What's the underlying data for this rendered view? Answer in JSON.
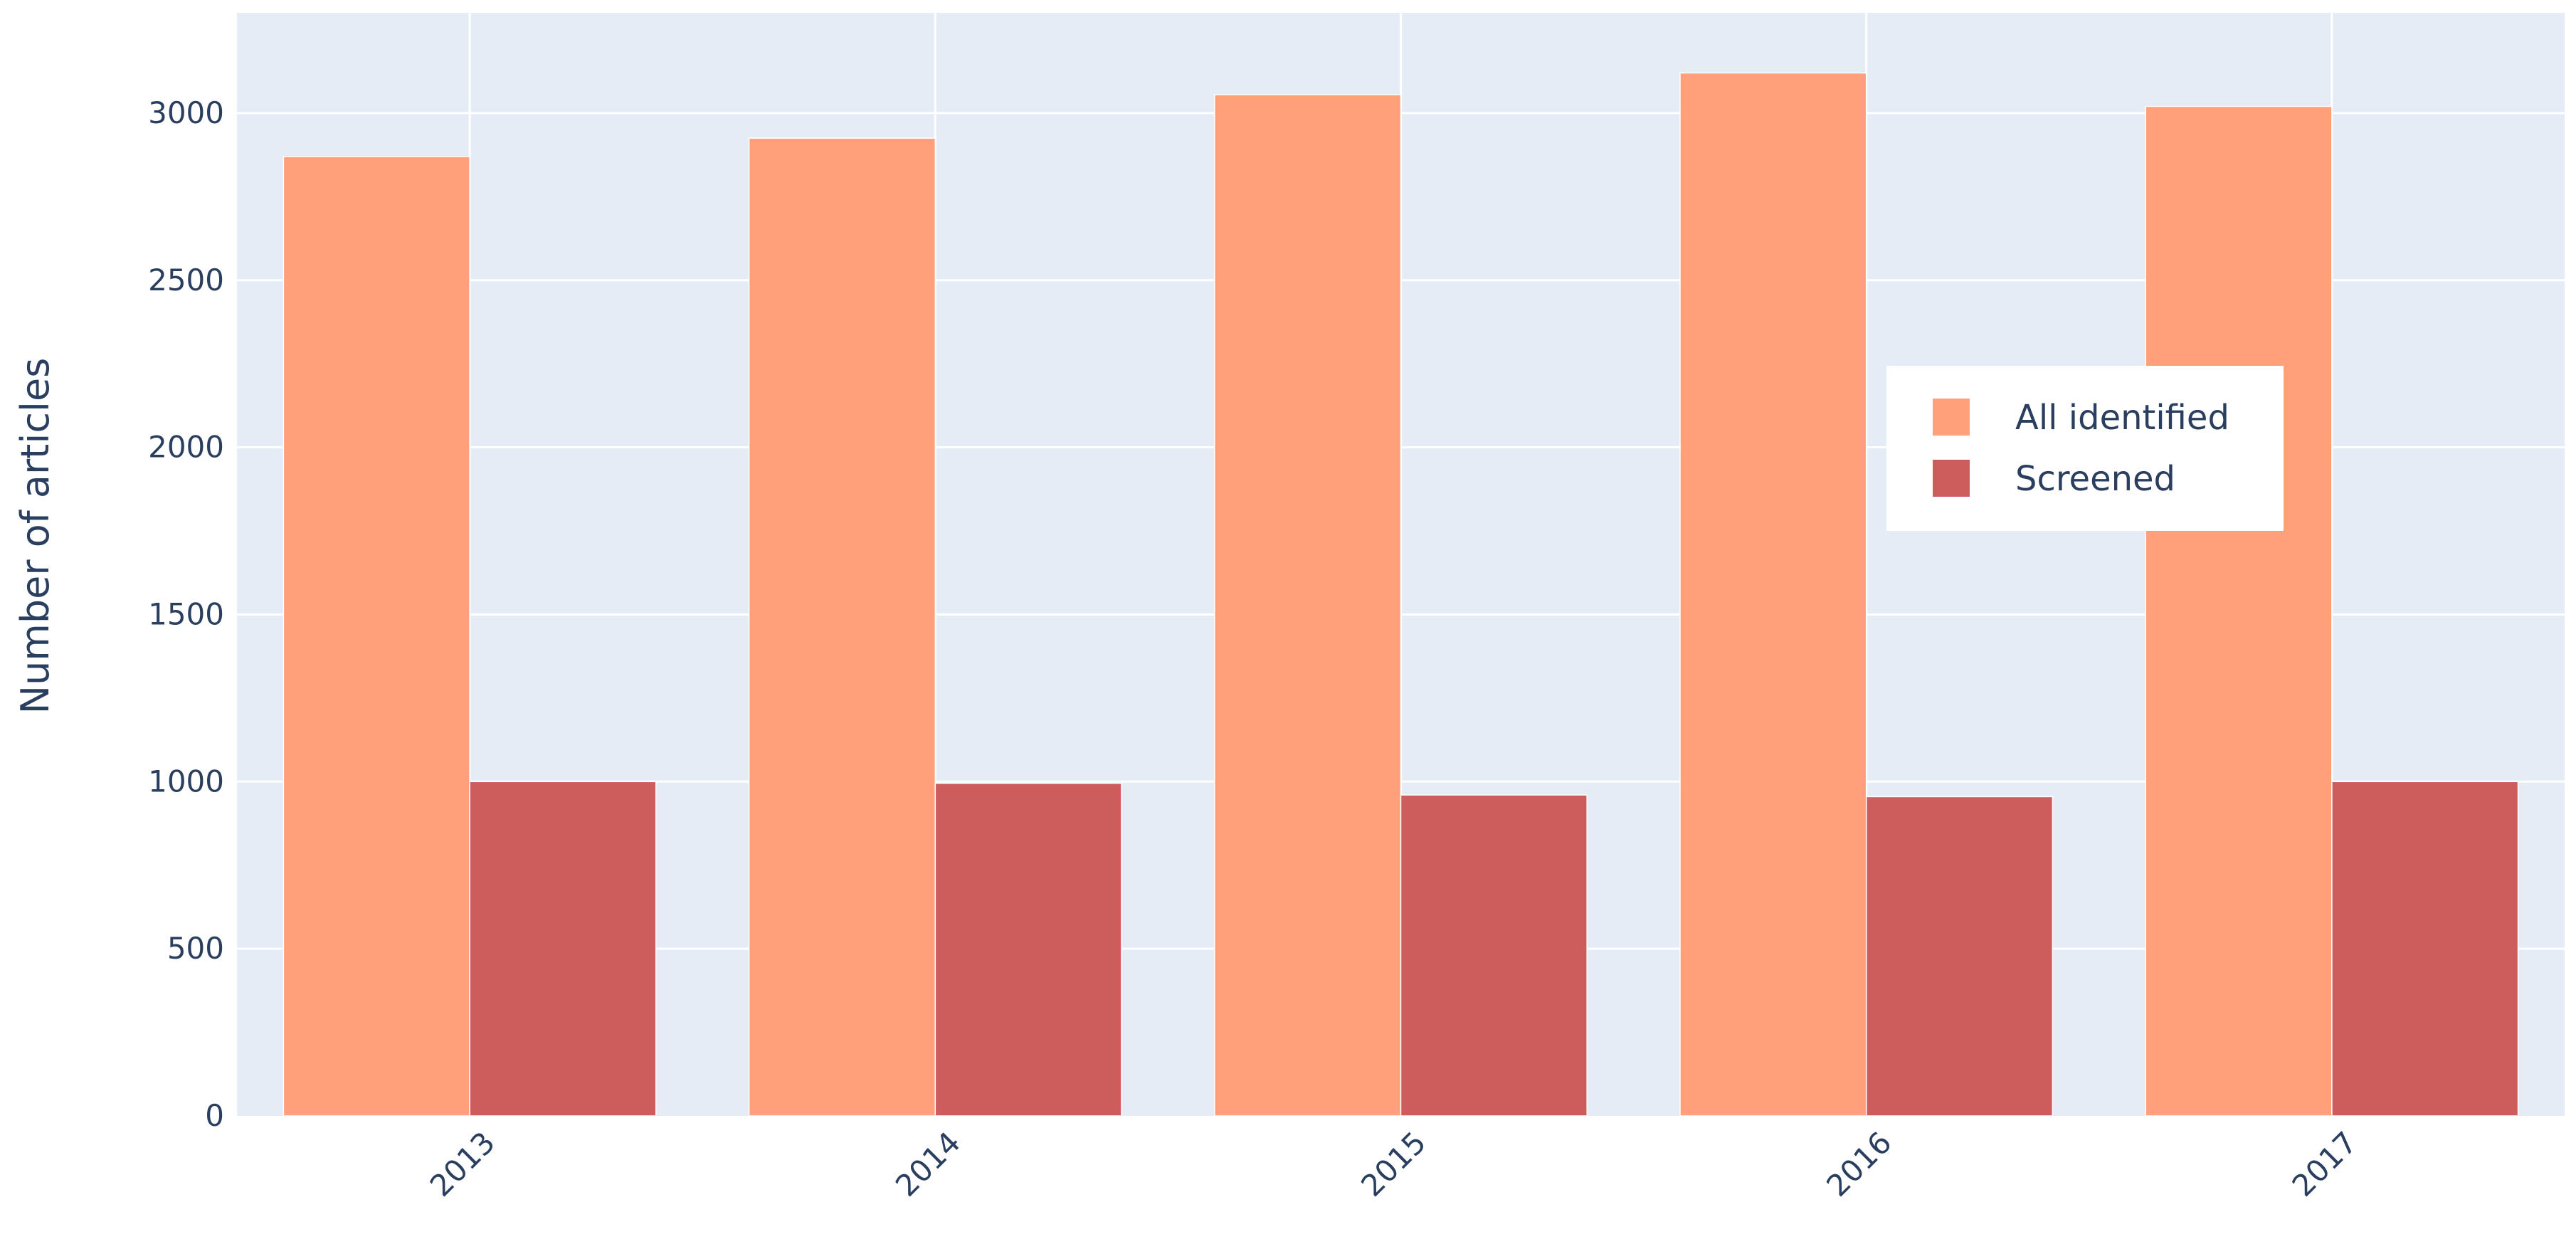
{
  "chart_data": {
    "type": "bar",
    "title": "",
    "xlabel": "",
    "ylabel": "Number of articles",
    "categories": [
      "2013",
      "2014",
      "2015",
      "2016",
      "2017"
    ],
    "series": [
      {
        "name": "All identified",
        "color": "#FFA07A",
        "values": [
          2870,
          2925,
          3055,
          3120,
          3020
        ]
      },
      {
        "name": "Screened",
        "color": "#CD5C5C",
        "values": [
          1000,
          995,
          960,
          955,
          1000
        ]
      }
    ],
    "ylim": [
      0,
      3300
    ],
    "yticks": [
      0,
      500,
      1000,
      1500,
      2000,
      2500,
      3000
    ],
    "grid": true,
    "legend_position": "right",
    "plot_background": "#E5ECF6"
  }
}
